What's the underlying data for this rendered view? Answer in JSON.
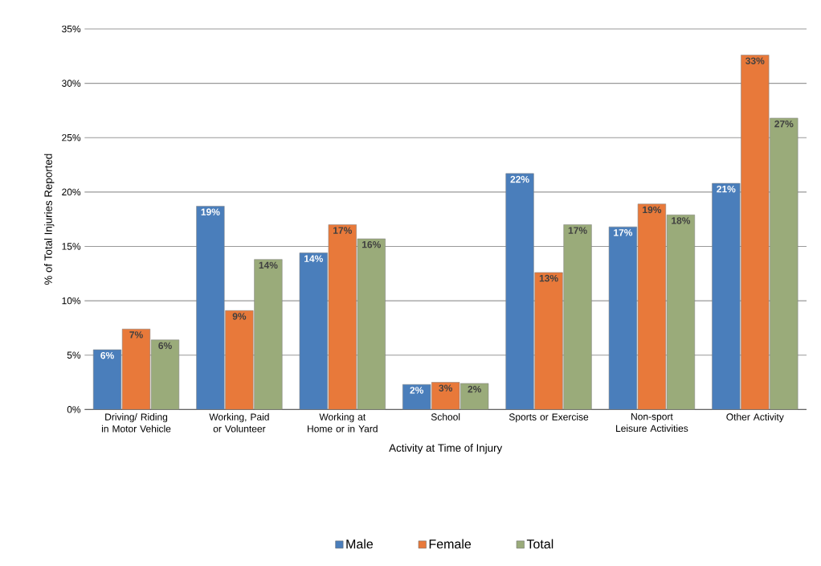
{
  "chart_data": {
    "type": "bar",
    "xlabel": "Activity at Time of Injury",
    "ylabel": "% of Total Injuries Reported",
    "categories": [
      "Driving/ Riding in Motor Vehicle",
      "Working, Paid or Volunteer",
      "Working at Home or in Yard",
      "School",
      "Sports or Exercise",
      "Non-sport Leisure Activities",
      "Other Activity"
    ],
    "series": [
      {
        "name": "Male",
        "color": "#4a7ebb",
        "values": [
          5.5,
          18.7,
          14.4,
          2.3,
          21.7,
          16.8,
          20.8
        ],
        "value_labels": [
          "6%",
          "19%",
          "14%",
          "2%",
          "22%",
          "17%",
          "21%"
        ]
      },
      {
        "name": "Female",
        "color": "#e8793a",
        "values": [
          7.4,
          9.1,
          17.0,
          2.5,
          12.6,
          18.9,
          32.6
        ],
        "value_labels": [
          "7%",
          "9%",
          "17%",
          "3%",
          "13%",
          "19%",
          "33%"
        ]
      },
      {
        "name": "Total",
        "color": "#9aab7a",
        "values": [
          6.4,
          13.8,
          15.7,
          2.4,
          17.0,
          17.9,
          26.8
        ],
        "value_labels": [
          "6%",
          "14%",
          "16%",
          "2%",
          "17%",
          "18%",
          "27%"
        ]
      }
    ],
    "ylim": [
      0,
      35
    ],
    "yticks": [
      {
        "value": 0,
        "label": "0%"
      },
      {
        "value": 5,
        "label": "5%"
      },
      {
        "value": 10,
        "label": "10%"
      },
      {
        "value": 15,
        "label": "15%"
      },
      {
        "value": 20,
        "label": "20%"
      },
      {
        "value": 25,
        "label": "25%"
      },
      {
        "value": 30,
        "label": "30%"
      },
      {
        "value": 35,
        "label": "35%"
      }
    ],
    "grid": "y",
    "legend": "bottom"
  }
}
